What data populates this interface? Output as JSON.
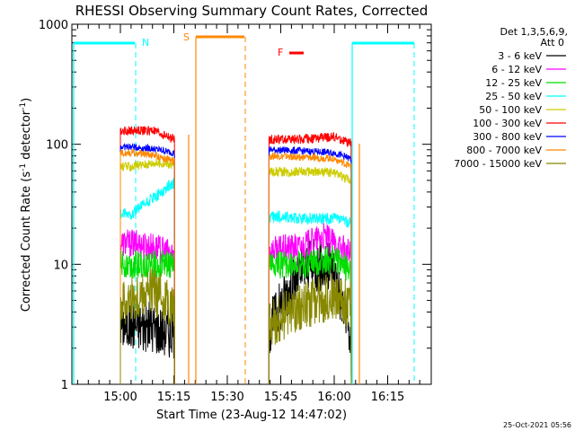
{
  "chart_data": {
    "type": "line",
    "title": "RHESSI Observing Summary Count Rates, Corrected",
    "xlabel": "Start Time (23-Aug-12 14:47:02)",
    "ylabel_main": "Corrected Count Rate (s",
    "ylabel_sup1": "-1",
    "ylabel_mid": " detector",
    "ylabel_sup2": "-1",
    "ylabel_end": ")",
    "y_scale": "log",
    "ylim": [
      1,
      1000
    ],
    "xlim_minutes": [
      14.77,
      16.45
    ],
    "x_ticks": [
      {
        "t": 15.0,
        "label": "15:00"
      },
      {
        "t": 15.25,
        "label": "15:15"
      },
      {
        "t": 15.5,
        "label": "15:30"
      },
      {
        "t": 15.75,
        "label": "15:45"
      },
      {
        "t": 16.0,
        "label": "16:00"
      },
      {
        "t": 16.25,
        "label": "16:15"
      }
    ],
    "y_ticks": [
      {
        "v": 1,
        "label": "1"
      },
      {
        "v": 10,
        "label": "10"
      },
      {
        "v": 100,
        "label": "100"
      },
      {
        "v": 1000,
        "label": "1000"
      }
    ],
    "legend_header": [
      "Det 1,3,5,6,9,",
      "Att 0"
    ],
    "legend_position": "right",
    "series": [
      {
        "name": "3 - 6 keV",
        "color": "#000000",
        "values": [
          [
            15.05,
            3.2
          ],
          [
            15.15,
            3.0
          ],
          [
            15.25,
            2.7
          ],
          [
            15.7,
            3.0
          ],
          [
            15.78,
            6.0
          ],
          [
            15.88,
            10.0
          ],
          [
            16.0,
            9.0
          ],
          [
            16.08,
            2.3
          ]
        ]
      },
      {
        "name": "6 - 12 keV",
        "color": "#ff00ff",
        "values": [
          [
            15.05,
            15.0
          ],
          [
            15.15,
            14.0
          ],
          [
            15.25,
            12.0
          ],
          [
            15.7,
            13.0
          ],
          [
            15.85,
            14.0
          ],
          [
            15.95,
            17.0
          ],
          [
            16.08,
            12.0
          ]
        ]
      },
      {
        "name": "12 - 25 keV",
        "color": "#00dd00",
        "values": [
          [
            15.05,
            10.0
          ],
          [
            15.15,
            10.0
          ],
          [
            15.25,
            10.0
          ],
          [
            15.7,
            10.0
          ],
          [
            15.85,
            10.0
          ],
          [
            16.0,
            11.0
          ],
          [
            16.08,
            9.0
          ]
        ]
      },
      {
        "name": "25 - 50 keV",
        "color": "#00ffff",
        "values": [
          [
            15.05,
            26.0
          ],
          [
            15.15,
            35.0
          ],
          [
            15.25,
            48.0
          ],
          [
            15.7,
            25.0
          ],
          [
            15.85,
            24.0
          ],
          [
            16.0,
            24.0
          ],
          [
            16.08,
            22.0
          ]
        ]
      },
      {
        "name": "50 - 100 keV",
        "color": "#cccc00",
        "values": [
          [
            15.05,
            65.0
          ],
          [
            15.15,
            70.0
          ],
          [
            15.25,
            68.0
          ],
          [
            15.7,
            59.0
          ],
          [
            15.85,
            59.0
          ],
          [
            16.0,
            58.0
          ],
          [
            16.08,
            50.0
          ]
        ]
      },
      {
        "name": "100 - 300 keV",
        "color": "#ff0000",
        "values": [
          [
            15.05,
            130.0
          ],
          [
            15.15,
            130.0
          ],
          [
            15.25,
            110.0
          ],
          [
            15.7,
            110.0
          ],
          [
            15.85,
            110.0
          ],
          [
            16.0,
            115.0
          ],
          [
            16.08,
            100.0
          ]
        ]
      },
      {
        "name": "300 - 800 keV",
        "color": "#0000ff",
        "values": [
          [
            15.05,
            95.0
          ],
          [
            15.15,
            92.0
          ],
          [
            15.25,
            85.0
          ],
          [
            15.7,
            90.0
          ],
          [
            15.85,
            88.0
          ],
          [
            16.0,
            85.0
          ],
          [
            16.08,
            75.0
          ]
        ]
      },
      {
        "name": "800 - 7000 keV",
        "color": "#ff8800",
        "values": [
          [
            15.05,
            85.0
          ],
          [
            15.15,
            82.0
          ],
          [
            15.25,
            72.0
          ],
          [
            15.7,
            80.0
          ],
          [
            15.85,
            78.0
          ],
          [
            16.0,
            76.0
          ],
          [
            16.08,
            65.0
          ]
        ]
      },
      {
        "name": "7000 - 15000 keV",
        "color": "#888800",
        "values": [
          [
            15.05,
            5.0
          ],
          [
            15.15,
            6.0
          ],
          [
            15.25,
            4.5
          ],
          [
            15.7,
            3.2
          ],
          [
            15.85,
            4.5
          ],
          [
            16.0,
            5.5
          ],
          [
            16.08,
            4.5
          ]
        ]
      }
    ],
    "annotations": [
      {
        "label": "N",
        "color": "#00ffff"
      },
      {
        "label": "S",
        "color": "#ff8800"
      },
      {
        "label": "F",
        "color": "#ff0000"
      }
    ],
    "timestamp": "25-Oct-2021 05:56"
  }
}
